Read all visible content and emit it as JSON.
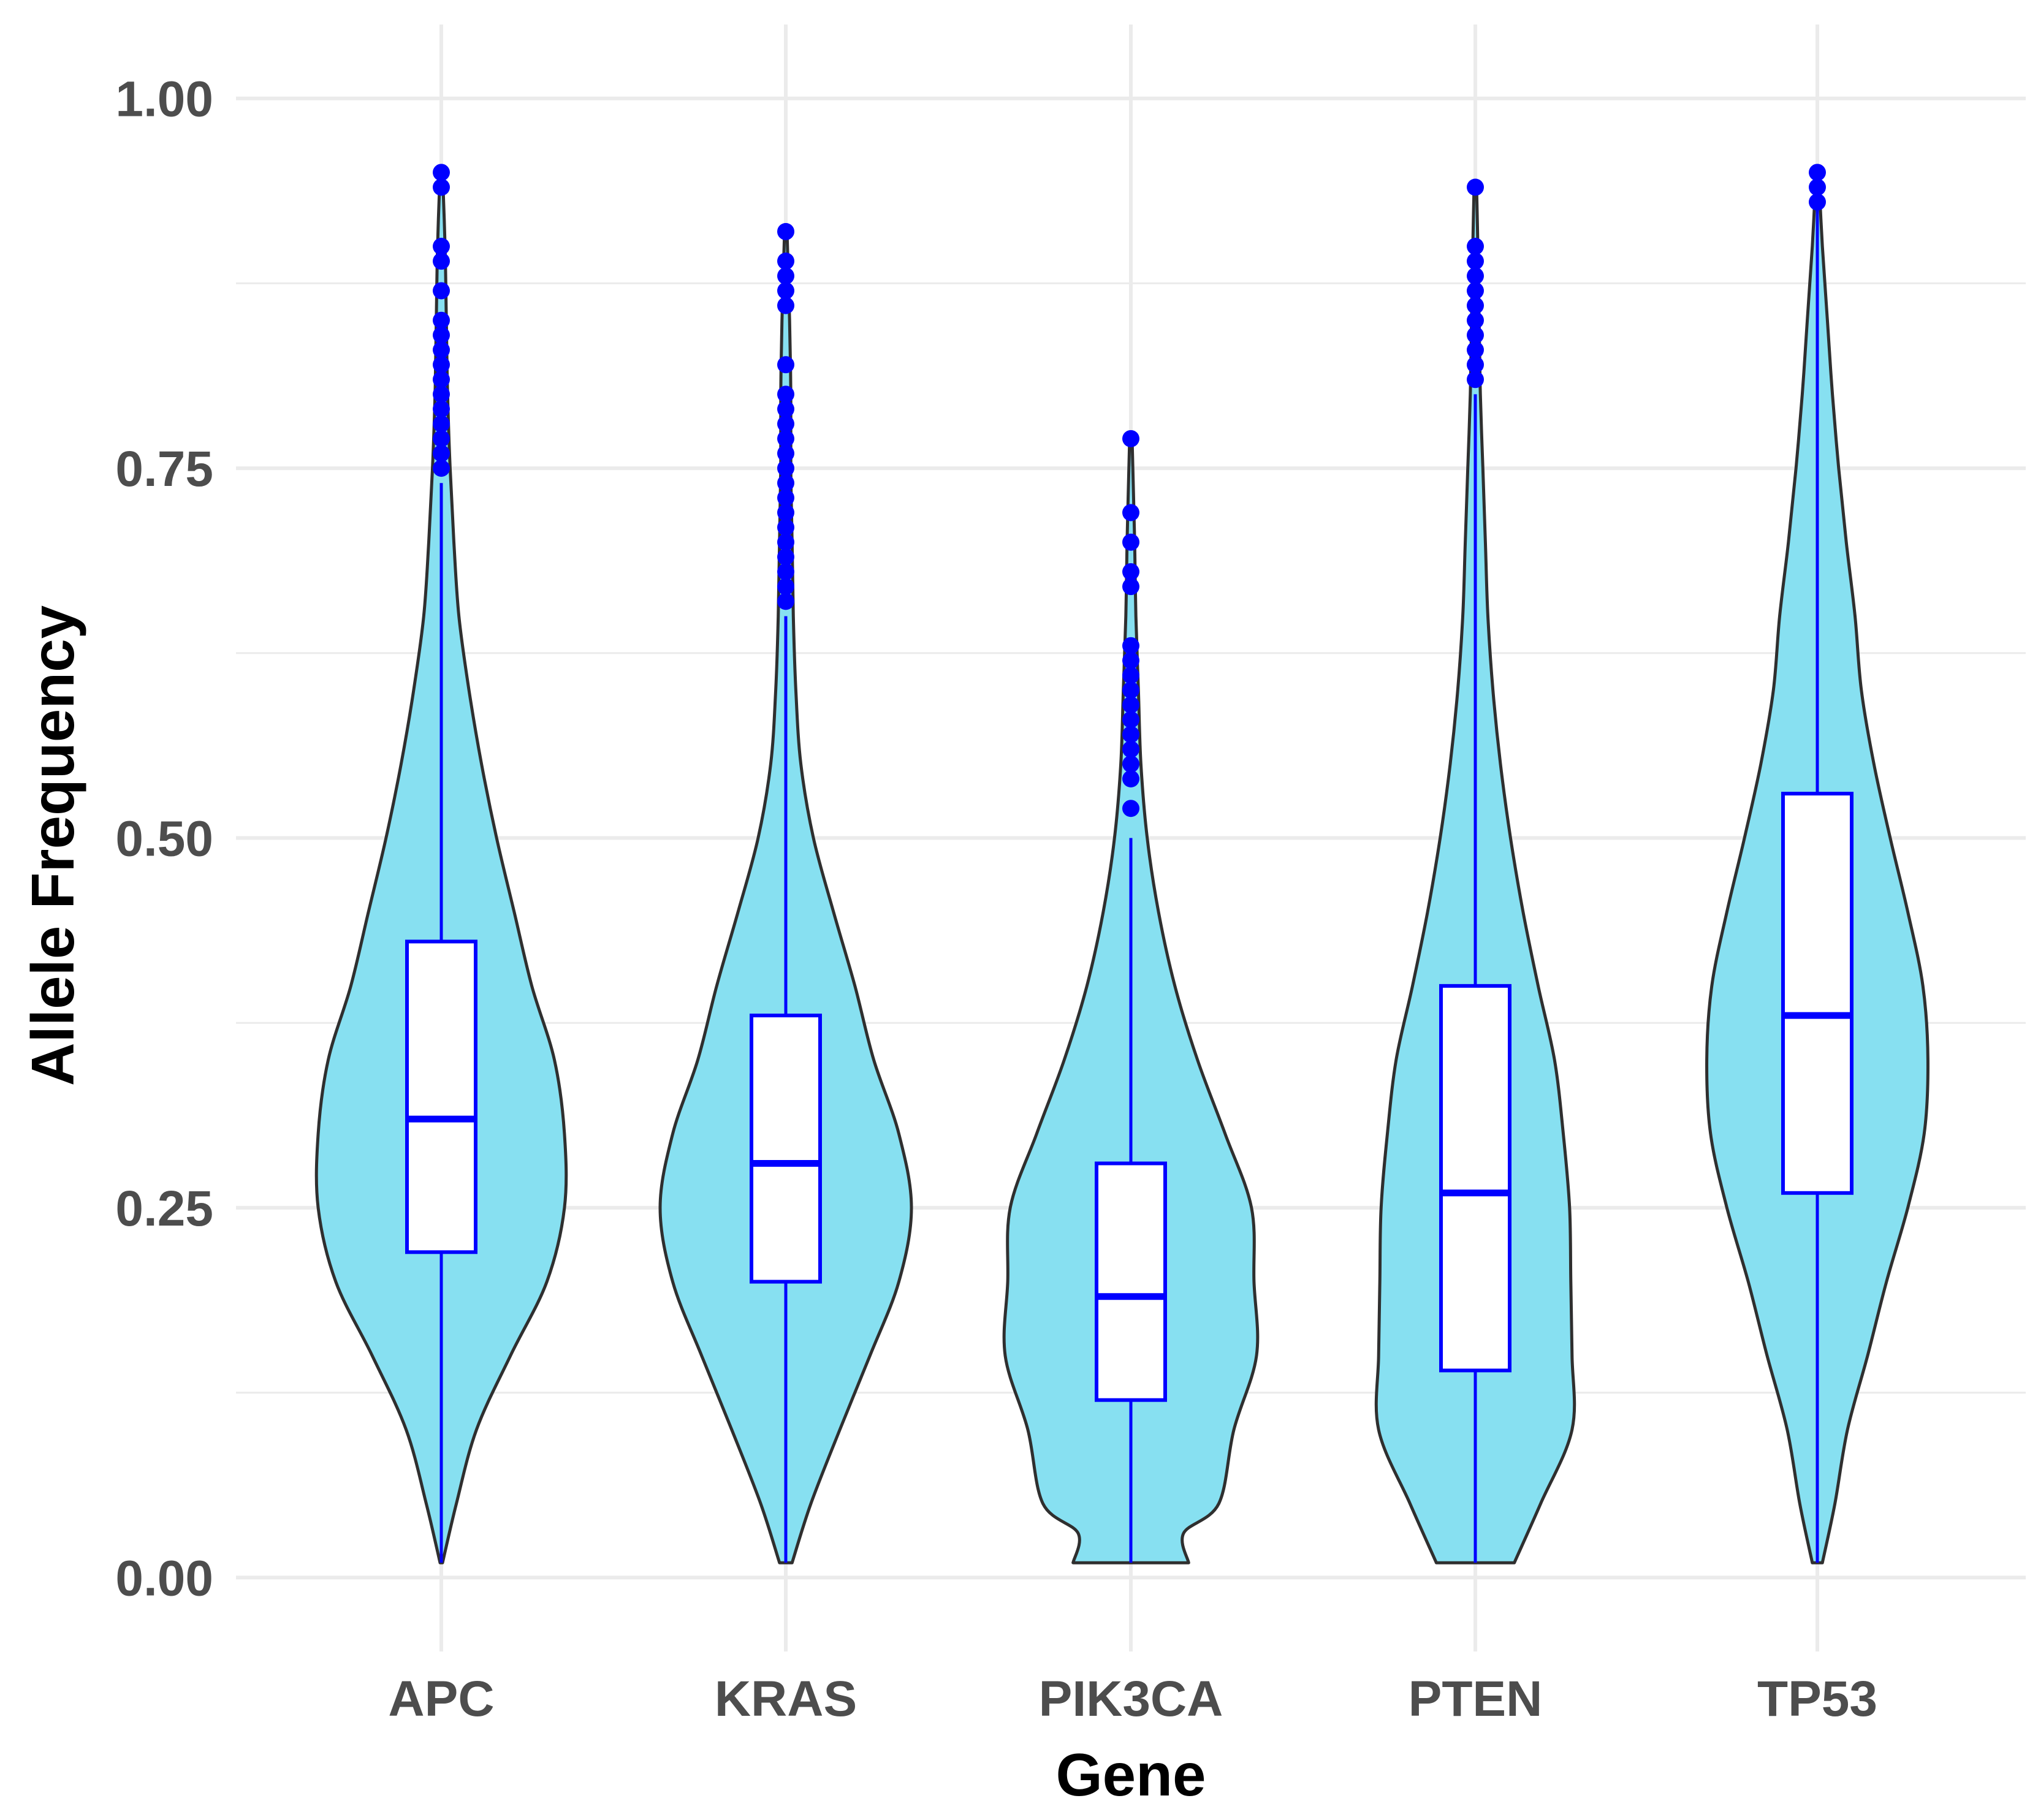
{
  "chart_data": {
    "type": "violin",
    "title": "",
    "xlabel": "Gene",
    "ylabel": "Allele Frequency",
    "ylim": [
      -0.05,
      1.05
    ],
    "y_ticks": [
      "0.00",
      "0.25",
      "0.50",
      "0.75",
      "1.00"
    ],
    "grid": true,
    "legend": "none",
    "colors": {
      "violin_fill": "#87e0f1",
      "violin_outline": "#2f2f2f",
      "box_and_points": "#0000ff"
    },
    "categories": [
      "APC",
      "KRAS",
      "PIK3CA",
      "PTEN",
      "TP53"
    ],
    "series": [
      {
        "category": "APC",
        "range": [
          0.01,
          0.95
        ],
        "box": {
          "q1": 0.22,
          "median": 0.31,
          "q3": 0.43,
          "lower_whisker": 0.01,
          "upper_whisker": 0.74
        },
        "outliers": [
          0.75,
          0.76,
          0.77,
          0.78,
          0.79,
          0.8,
          0.81,
          0.82,
          0.83,
          0.84,
          0.85,
          0.87,
          0.89,
          0.9,
          0.94,
          0.95
        ],
        "density": [
          [
            0.01,
            0.01
          ],
          [
            0.05,
            0.12
          ],
          [
            0.1,
            0.28
          ],
          [
            0.15,
            0.55
          ],
          [
            0.2,
            0.84
          ],
          [
            0.25,
            0.98
          ],
          [
            0.3,
            0.98
          ],
          [
            0.35,
            0.9
          ],
          [
            0.4,
            0.72
          ],
          [
            0.45,
            0.58
          ],
          [
            0.5,
            0.44
          ],
          [
            0.55,
            0.32
          ],
          [
            0.6,
            0.22
          ],
          [
            0.65,
            0.14
          ],
          [
            0.7,
            0.1
          ],
          [
            0.75,
            0.07
          ],
          [
            0.8,
            0.05
          ],
          [
            0.85,
            0.04
          ],
          [
            0.9,
            0.03
          ],
          [
            0.95,
            0.01
          ]
        ]
      },
      {
        "category": "KRAS",
        "range": [
          0.01,
          0.91
        ],
        "box": {
          "q1": 0.2,
          "median": 0.28,
          "q3": 0.38,
          "lower_whisker": 0.01,
          "upper_whisker": 0.65
        },
        "outliers": [
          0.66,
          0.67,
          0.68,
          0.69,
          0.7,
          0.71,
          0.72,
          0.73,
          0.74,
          0.75,
          0.76,
          0.77,
          0.78,
          0.79,
          0.8,
          0.82,
          0.86,
          0.87,
          0.88,
          0.89,
          0.91
        ],
        "density": [
          [
            0.01,
            0.05
          ],
          [
            0.05,
            0.2
          ],
          [
            0.1,
            0.43
          ],
          [
            0.15,
            0.67
          ],
          [
            0.2,
            0.9
          ],
          [
            0.25,
            1.0
          ],
          [
            0.3,
            0.9
          ],
          [
            0.35,
            0.7
          ],
          [
            0.4,
            0.55
          ],
          [
            0.45,
            0.38
          ],
          [
            0.5,
            0.22
          ],
          [
            0.55,
            0.12
          ],
          [
            0.6,
            0.08
          ],
          [
            0.65,
            0.06
          ],
          [
            0.7,
            0.05
          ],
          [
            0.75,
            0.04
          ],
          [
            0.8,
            0.04
          ],
          [
            0.85,
            0.03
          ],
          [
            0.91,
            0.01
          ]
        ]
      },
      {
        "category": "PIK3CA",
        "range": [
          0.01,
          0.77
        ],
        "box": {
          "q1": 0.12,
          "median": 0.19,
          "q3": 0.28,
          "lower_whisker": 0.01,
          "upper_whisker": 0.5
        },
        "outliers": [
          0.52,
          0.54,
          0.55,
          0.56,
          0.57,
          0.58,
          0.59,
          0.6,
          0.61,
          0.62,
          0.63,
          0.67,
          0.68,
          0.7,
          0.72,
          0.77
        ],
        "density": [
          [
            0.01,
            0.46
          ],
          [
            0.03,
            0.42
          ],
          [
            0.05,
            0.7
          ],
          [
            0.1,
            0.82
          ],
          [
            0.15,
            1.0
          ],
          [
            0.2,
            0.98
          ],
          [
            0.25,
            0.96
          ],
          [
            0.3,
            0.75
          ],
          [
            0.35,
            0.53
          ],
          [
            0.4,
            0.35
          ],
          [
            0.45,
            0.22
          ],
          [
            0.5,
            0.13
          ],
          [
            0.55,
            0.08
          ],
          [
            0.6,
            0.06
          ],
          [
            0.65,
            0.04
          ],
          [
            0.7,
            0.03
          ],
          [
            0.77,
            0.01
          ]
        ]
      },
      {
        "category": "PTEN",
        "range": [
          0.01,
          0.94
        ],
        "box": {
          "q1": 0.14,
          "median": 0.26,
          "q3": 0.4,
          "lower_whisker": 0.01,
          "upper_whisker": 0.8
        },
        "outliers": [
          0.81,
          0.82,
          0.83,
          0.84,
          0.85,
          0.86,
          0.87,
          0.88,
          0.89,
          0.9,
          0.94
        ],
        "density": [
          [
            0.01,
            0.31
          ],
          [
            0.05,
            0.52
          ],
          [
            0.1,
            0.77
          ],
          [
            0.15,
            0.77
          ],
          [
            0.2,
            0.76
          ],
          [
            0.25,
            0.75
          ],
          [
            0.3,
            0.7
          ],
          [
            0.35,
            0.63
          ],
          [
            0.4,
            0.5
          ],
          [
            0.45,
            0.38
          ],
          [
            0.5,
            0.28
          ],
          [
            0.55,
            0.2
          ],
          [
            0.6,
            0.14
          ],
          [
            0.65,
            0.1
          ],
          [
            0.7,
            0.08
          ],
          [
            0.75,
            0.06
          ],
          [
            0.8,
            0.04
          ],
          [
            0.85,
            0.03
          ],
          [
            0.9,
            0.02
          ],
          [
            0.94,
            0.01
          ]
        ]
      },
      {
        "category": "TP53",
        "range": [
          0.01,
          0.95
        ],
        "box": {
          "q1": 0.26,
          "median": 0.38,
          "q3": 0.53,
          "lower_whisker": 0.01,
          "upper_whisker": 0.93
        },
        "outliers": [
          0.93,
          0.94,
          0.95
        ],
        "density": [
          [
            0.01,
            0.04
          ],
          [
            0.05,
            0.14
          ],
          [
            0.1,
            0.24
          ],
          [
            0.15,
            0.4
          ],
          [
            0.2,
            0.55
          ],
          [
            0.25,
            0.72
          ],
          [
            0.3,
            0.85
          ],
          [
            0.35,
            0.88
          ],
          [
            0.4,
            0.84
          ],
          [
            0.45,
            0.72
          ],
          [
            0.5,
            0.58
          ],
          [
            0.55,
            0.45
          ],
          [
            0.6,
            0.35
          ],
          [
            0.65,
            0.3
          ],
          [
            0.7,
            0.23
          ],
          [
            0.75,
            0.17
          ],
          [
            0.8,
            0.12
          ],
          [
            0.85,
            0.08
          ],
          [
            0.9,
            0.04
          ],
          [
            0.95,
            0.01
          ]
        ]
      }
    ]
  }
}
